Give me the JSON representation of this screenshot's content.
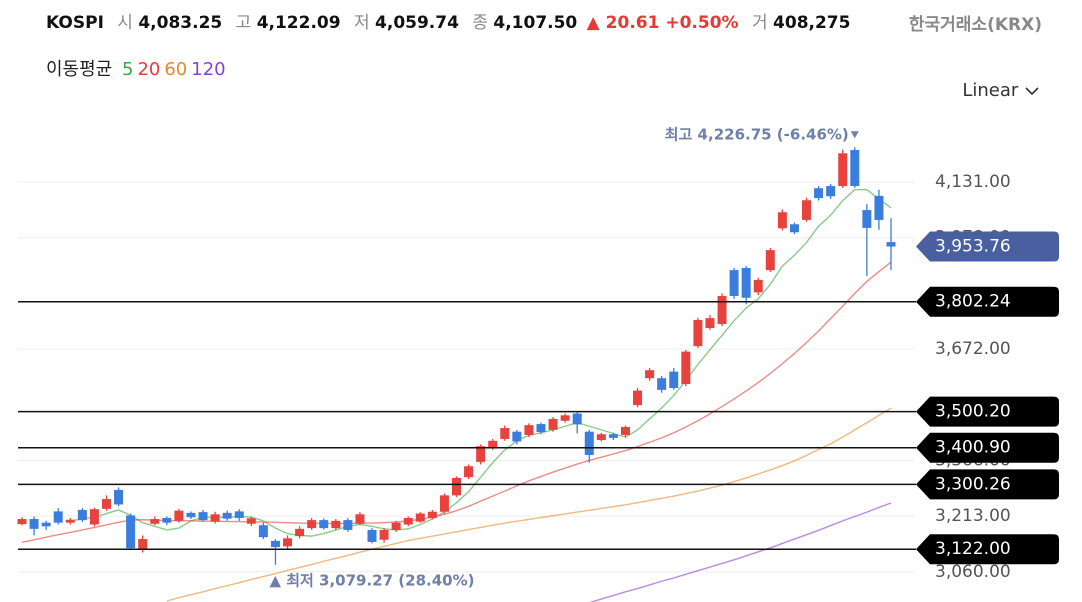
{
  "header": {
    "symbol": "KOSPI",
    "fields": [
      {
        "label": "시",
        "value": "4,083.25"
      },
      {
        "label": "고",
        "value": "4,122.09"
      },
      {
        "label": "저",
        "value": "4,059.74"
      },
      {
        "label": "종",
        "value": "4,107.50"
      }
    ],
    "change": "▲ 20.61 +0.50%",
    "volume_label": "거",
    "volume": "408,275",
    "source": "한국거래소(KRX)",
    "ma_title": "이동평균",
    "scale": "Linear"
  },
  "chart_data": {
    "type": "candlestick",
    "up_color": "#e8423f",
    "down_color": "#3b7ddd",
    "grid": true,
    "ylim": [
      2977,
      4329
    ],
    "yticks": [
      {
        "value": 4131,
        "label": "4,131.00"
      },
      {
        "value": 3978,
        "label": "3,978.00"
      },
      {
        "value": 3672,
        "label": "3,672.00"
      },
      {
        "value": 3366,
        "label": "3,366.00"
      },
      {
        "value": 3213,
        "label": "3,213.00"
      },
      {
        "value": 3060,
        "label": "3,060.00"
      }
    ],
    "open": [
      3191,
      3205,
      3195,
      3226,
      3195,
      3230,
      3190,
      3233,
      3285,
      3215,
      3120,
      3192,
      3208,
      3200,
      3222,
      3224,
      3198,
      3222,
      3226,
      3192,
      3188,
      3145,
      3130,
      3158,
      3180,
      3202,
      3180,
      3202,
      3192,
      3175,
      3148,
      3175,
      3190,
      3198,
      3208,
      3225,
      3270,
      3320,
      3362,
      3400,
      3425,
      3445,
      3436,
      3466,
      3450,
      3475,
      3495,
      3445,
      3422,
      3438,
      3436,
      3518,
      3592,
      3592,
      3610,
      3576,
      3680,
      3730,
      3741,
      3889,
      3895,
      3828,
      3889,
      4004,
      4015,
      4027,
      4114,
      4120,
      4120,
      4219,
      4054,
      4093,
      3966
    ],
    "high": [
      3210,
      3212,
      3200,
      3235,
      3208,
      3235,
      3236,
      3270,
      3292,
      3220,
      3160,
      3212,
      3212,
      3233,
      3226,
      3230,
      3225,
      3228,
      3232,
      3212,
      3195,
      3150,
      3160,
      3185,
      3208,
      3207,
      3205,
      3208,
      3224,
      3180,
      3180,
      3200,
      3212,
      3224,
      3230,
      3275,
      3322,
      3355,
      3410,
      3425,
      3462,
      3450,
      3468,
      3470,
      3485,
      3495,
      3500,
      3450,
      3442,
      3442,
      3462,
      3565,
      3620,
      3598,
      3620,
      3670,
      3758,
      3765,
      3825,
      3895,
      3900,
      3868,
      3950,
      4056,
      4020,
      4088,
      4120,
      4126,
      4220,
      4226.75,
      4070,
      4110,
      4032
    ],
    "low": [
      3188,
      3160,
      3175,
      3190,
      3190,
      3197,
      3185,
      3228,
      3240,
      3120,
      3113,
      3188,
      3188,
      3195,
      3205,
      3198,
      3193,
      3200,
      3200,
      3186,
      3150,
      3079.27,
      3120,
      3152,
      3175,
      3176,
      3175,
      3170,
      3188,
      3138,
      3140,
      3170,
      3185,
      3195,
      3204,
      3220,
      3265,
      3315,
      3355,
      3395,
      3420,
      3410,
      3430,
      3438,
      3445,
      3470,
      3440,
      3360,
      3418,
      3422,
      3430,
      3512,
      3585,
      3552,
      3560,
      3570,
      3675,
      3725,
      3735,
      3810,
      3795,
      3820,
      3884,
      3998,
      3988,
      4022,
      4080,
      4085,
      4115,
      4115,
      3873,
      4000,
      3889
    ],
    "close": [
      3205,
      3178,
      3185,
      3195,
      3203,
      3202,
      3232,
      3260,
      3245,
      3125,
      3150,
      3205,
      3195,
      3228,
      3210,
      3202,
      3218,
      3206,
      3208,
      3207,
      3155,
      3128,
      3152,
      3178,
      3202,
      3180,
      3200,
      3175,
      3218,
      3142,
      3175,
      3195,
      3208,
      3220,
      3225,
      3270,
      3318,
      3350,
      3405,
      3420,
      3455,
      3418,
      3463,
      3444,
      3480,
      3490,
      3465,
      3381,
      3438,
      3428,
      3458,
      3558,
      3614,
      3560,
      3565,
      3665,
      3752,
      3757,
      3818,
      3818,
      3813,
      3862,
      3944,
      4048,
      3993,
      4081,
      4087,
      4092,
      4210,
      4120,
      4005,
      4027,
      3953.76
    ],
    "series": [
      {
        "name": "5",
        "color": "#3aa83a",
        "values": [
          null,
          null,
          null,
          null,
          3200,
          3205,
          3210,
          3220,
          3230,
          3215,
          3195,
          3185,
          3175,
          3180,
          3200,
          3210,
          3210,
          3210,
          3212,
          3210,
          3200,
          3180,
          3165,
          3160,
          3158,
          3165,
          3175,
          3185,
          3190,
          3185,
          3178,
          3175,
          3178,
          3190,
          3205,
          3225,
          3250,
          3280,
          3320,
          3360,
          3395,
          3420,
          3435,
          3442,
          3450,
          3460,
          3470,
          3460,
          3450,
          3440,
          3430,
          3450,
          3480,
          3510,
          3545,
          3585,
          3630,
          3670,
          3710,
          3750,
          3785,
          3810,
          3850,
          3900,
          3930,
          3965,
          4010,
          4040,
          4080,
          4110,
          4110,
          4085,
          4060
        ]
      },
      {
        "name": "20",
        "color": "#e0403a",
        "values": [
          3141,
          3148,
          3155,
          3162,
          3168,
          3175,
          3182,
          3189,
          3196,
          3202,
          3203,
          3202,
          3201,
          3200,
          3200,
          3199,
          3199,
          3198,
          3198,
          3197,
          3197,
          3196,
          3195,
          3194,
          3193,
          3193,
          3193,
          3193,
          3194,
          3194,
          3195,
          3197,
          3200,
          3204,
          3210,
          3218,
          3228,
          3240,
          3254,
          3268,
          3282,
          3296,
          3310,
          3322,
          3334,
          3345,
          3356,
          3366,
          3375,
          3384,
          3393,
          3404,
          3416,
          3428,
          3442,
          3458,
          3475,
          3494,
          3514,
          3535,
          3557,
          3580,
          3605,
          3632,
          3660,
          3690,
          3722,
          3756,
          3790,
          3825,
          3858,
          3885,
          3911
        ]
      },
      {
        "name": "60",
        "color": "#e8892b",
        "values": [
          null,
          null,
          null,
          null,
          null,
          null,
          null,
          null,
          null,
          null,
          null,
          null,
          2980,
          2989,
          2997,
          3005,
          3014,
          3022,
          3030,
          3039,
          3047,
          3055,
          3064,
          3072,
          3080,
          3089,
          3097,
          3105,
          3114,
          3122,
          3130,
          3138,
          3146,
          3152,
          3158,
          3164,
          3170,
          3176,
          3182,
          3188,
          3194,
          3199,
          3204,
          3209,
          3214,
          3219,
          3224,
          3229,
          3234,
          3239,
          3244,
          3250,
          3256,
          3262,
          3268,
          3275,
          3282,
          3290,
          3298,
          3308,
          3318,
          3329,
          3340,
          3352,
          3365,
          3380,
          3396,
          3412,
          3430,
          3450,
          3470,
          3490,
          3510
        ]
      },
      {
        "name": "120",
        "color": "#8a3fd1",
        "values": [
          null,
          null,
          null,
          null,
          null,
          null,
          null,
          null,
          null,
          null,
          null,
          null,
          null,
          null,
          null,
          null,
          null,
          null,
          null,
          null,
          null,
          null,
          null,
          null,
          null,
          null,
          null,
          null,
          null,
          null,
          null,
          null,
          null,
          null,
          null,
          null,
          null,
          null,
          null,
          null,
          null,
          null,
          null,
          null,
          null,
          null,
          null,
          2975,
          2985,
          2995,
          3005,
          3014,
          3024,
          3034,
          3043,
          3053,
          3063,
          3073,
          3083,
          3093,
          3104,
          3115,
          3126,
          3138,
          3150,
          3162,
          3174,
          3187,
          3200,
          3212,
          3224,
          3237,
          3249
        ]
      }
    ],
    "price_lines": [
      {
        "value": 3802.24,
        "label": "3,802.24"
      },
      {
        "value": 3500.2,
        "label": "3,500.20"
      },
      {
        "value": 3400.9,
        "label": "3,400.90"
      },
      {
        "value": 3300.26,
        "label": "3,300.26"
      },
      {
        "value": 3122,
        "label": "3,122.00"
      }
    ],
    "current_price": {
      "value": 3953.76,
      "label": "3,953.76",
      "color": "#4a5fa0"
    },
    "annotations": [
      {
        "value": 4226.75,
        "label": "최고 4,226.75 (-6.46%)"
      },
      {
        "value": 3079.27,
        "label": "▲ 최저 3,079.27 (28.40%)"
      }
    ]
  }
}
